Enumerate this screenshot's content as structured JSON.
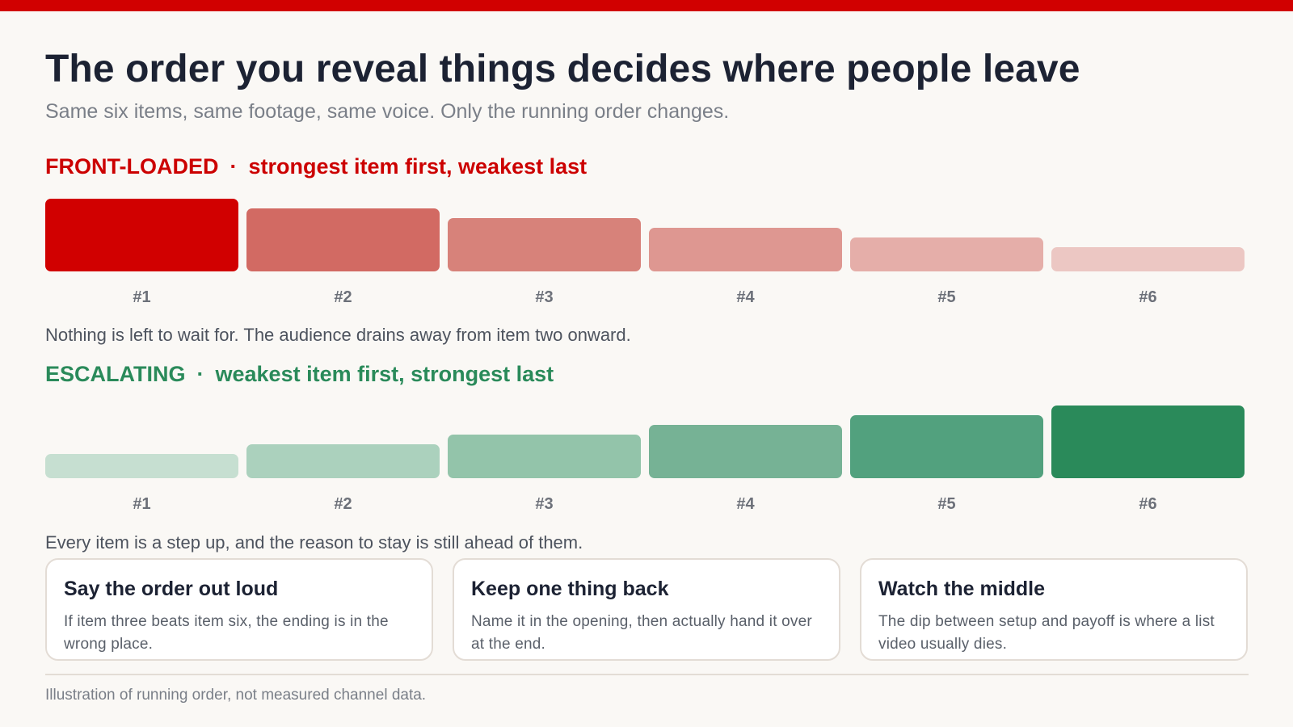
{
  "title": "The order you reveal things decides where people leave",
  "subtitle": "Same six items, same footage, same voice. Only the running order changes.",
  "separator": "·",
  "colors": {
    "brand_red": "#d10000",
    "escalating_green": "#2a8a5a"
  },
  "chart_data": [
    {
      "type": "bar",
      "label": "FRONT-LOADED",
      "description": "strongest item first, weakest last",
      "categories": [
        "#1",
        "#2",
        "#3",
        "#4",
        "#5",
        "#6"
      ],
      "values": [
        6,
        5,
        4,
        3,
        2,
        1
      ],
      "bar_colors": [
        "#d10000",
        "#d26a63",
        "#d7827a",
        "#de9791",
        "#e5aea9",
        "#ecc7c3"
      ],
      "caption": "Nothing is left to wait for. The audience drains away from item two onward."
    },
    {
      "type": "bar",
      "label": "ESCALATING",
      "description": "weakest item first, strongest last",
      "categories": [
        "#1",
        "#2",
        "#3",
        "#4",
        "#5",
        "#6"
      ],
      "values": [
        1,
        2,
        3,
        4,
        5,
        6
      ],
      "bar_colors": [
        "#c6dfd1",
        "#abd1bd",
        "#93c4aa",
        "#76b295",
        "#52a17e",
        "#2a8a5a"
      ],
      "caption": "Every item is a step up, and the reason to stay is still ahead of them."
    }
  ],
  "cards": [
    {
      "title": "Say the order out loud",
      "body": "If item three beats item six, the ending is in the wrong place."
    },
    {
      "title": "Keep one thing back",
      "body": "Name it in the opening, then actually hand it over at the end."
    },
    {
      "title": "Watch the middle",
      "body": "The dip between setup and payoff is where a list video usually dies."
    }
  ],
  "footnote": "Illustration of running order, not measured channel data."
}
